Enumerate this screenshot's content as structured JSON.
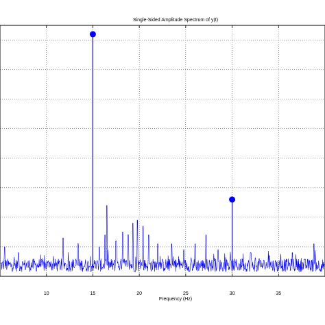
{
  "chart_data": {
    "type": "line",
    "title": "Single-Sided Amplitude Spectrum of y(t)",
    "xlabel": "Frequency (Hz)",
    "ylabel": "",
    "xlim": [
      5,
      40
    ],
    "ylim": [
      0,
      0.85
    ],
    "x_ticks": [
      10,
      15,
      20,
      25,
      30,
      35
    ],
    "x_tick_labels": [
      "10",
      "15",
      "20",
      "25",
      "30",
      "35"
    ],
    "y_gridlines": [
      0.1,
      0.2,
      0.3,
      0.4,
      0.5,
      0.6,
      0.7,
      0.8
    ],
    "grid": "dotted",
    "color": "#0000ff",
    "peaks": [
      {
        "x": 15,
        "y": 0.82
      },
      {
        "x": 30,
        "y": 0.26
      }
    ],
    "noise_spikes": [
      {
        "x": 5.5,
        "y": 0.1
      },
      {
        "x": 7.0,
        "y": 0.08
      },
      {
        "x": 11.8,
        "y": 0.13
      },
      {
        "x": 13.4,
        "y": 0.11
      },
      {
        "x": 15.7,
        "y": 0.1
      },
      {
        "x": 16.3,
        "y": 0.14
      },
      {
        "x": 16.5,
        "y": 0.24
      },
      {
        "x": 17.5,
        "y": 0.12
      },
      {
        "x": 18.2,
        "y": 0.15
      },
      {
        "x": 18.8,
        "y": 0.14
      },
      {
        "x": 19.3,
        "y": 0.18
      },
      {
        "x": 19.8,
        "y": 0.19
      },
      {
        "x": 20.4,
        "y": 0.17
      },
      {
        "x": 21.0,
        "y": 0.14
      },
      {
        "x": 22.0,
        "y": 0.11
      },
      {
        "x": 23.5,
        "y": 0.11
      },
      {
        "x": 24.8,
        "y": 0.09
      },
      {
        "x": 26.0,
        "y": 0.11
      },
      {
        "x": 27.2,
        "y": 0.14
      },
      {
        "x": 28.5,
        "y": 0.09
      },
      {
        "x": 32.0,
        "y": 0.08
      },
      {
        "x": 34.0,
        "y": 0.07
      },
      {
        "x": 36.5,
        "y": 0.08
      },
      {
        "x": 38.8,
        "y": 0.11
      }
    ]
  }
}
